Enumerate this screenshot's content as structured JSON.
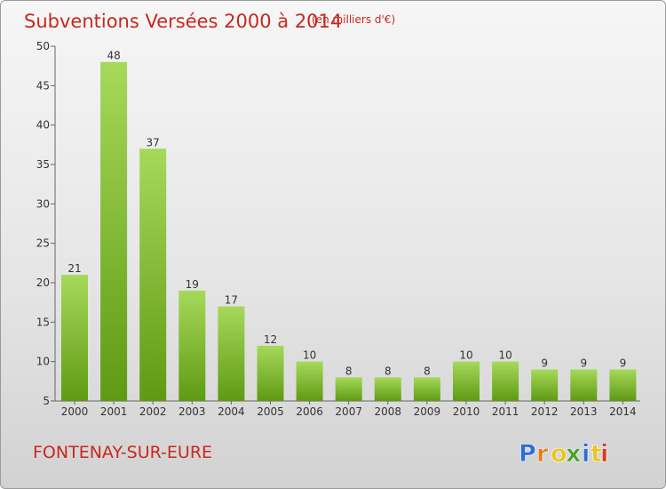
{
  "header": {
    "title": "Subventions Versées 2000 à 2014",
    "subtitle": "(en milliers d'€)"
  },
  "footer": {
    "commune": "FONTENAY-SUR-EURE",
    "logo_text": "Proxiti"
  },
  "colors": {
    "title": "#c8281e",
    "bar_light": "#a6d95a",
    "bar_dark": "#5f9a14",
    "logo_letters": [
      "#2b6fd6",
      "#e87a1e",
      "#e8c51e",
      "#4aa02c",
      "#2b6fd6",
      "#e8c51e",
      "#d83a2a"
    ]
  },
  "chart_data": {
    "type": "bar",
    "title": "Subventions Versées 2000 à 2014",
    "subtitle": "(en milliers d'€)",
    "categories": [
      "2000",
      "2001",
      "2002",
      "2003",
      "2004",
      "2005",
      "2006",
      "2007",
      "2008",
      "2009",
      "2010",
      "2011",
      "2012",
      "2013",
      "2014"
    ],
    "values": [
      21,
      48,
      37,
      19,
      17,
      12,
      10,
      8,
      8,
      8,
      10,
      10,
      9,
      9,
      9
    ],
    "ylim": [
      5,
      50
    ],
    "yticks": [
      5,
      10,
      15,
      20,
      25,
      30,
      35,
      40,
      45,
      50
    ],
    "grid": false,
    "data_labels": true
  }
}
